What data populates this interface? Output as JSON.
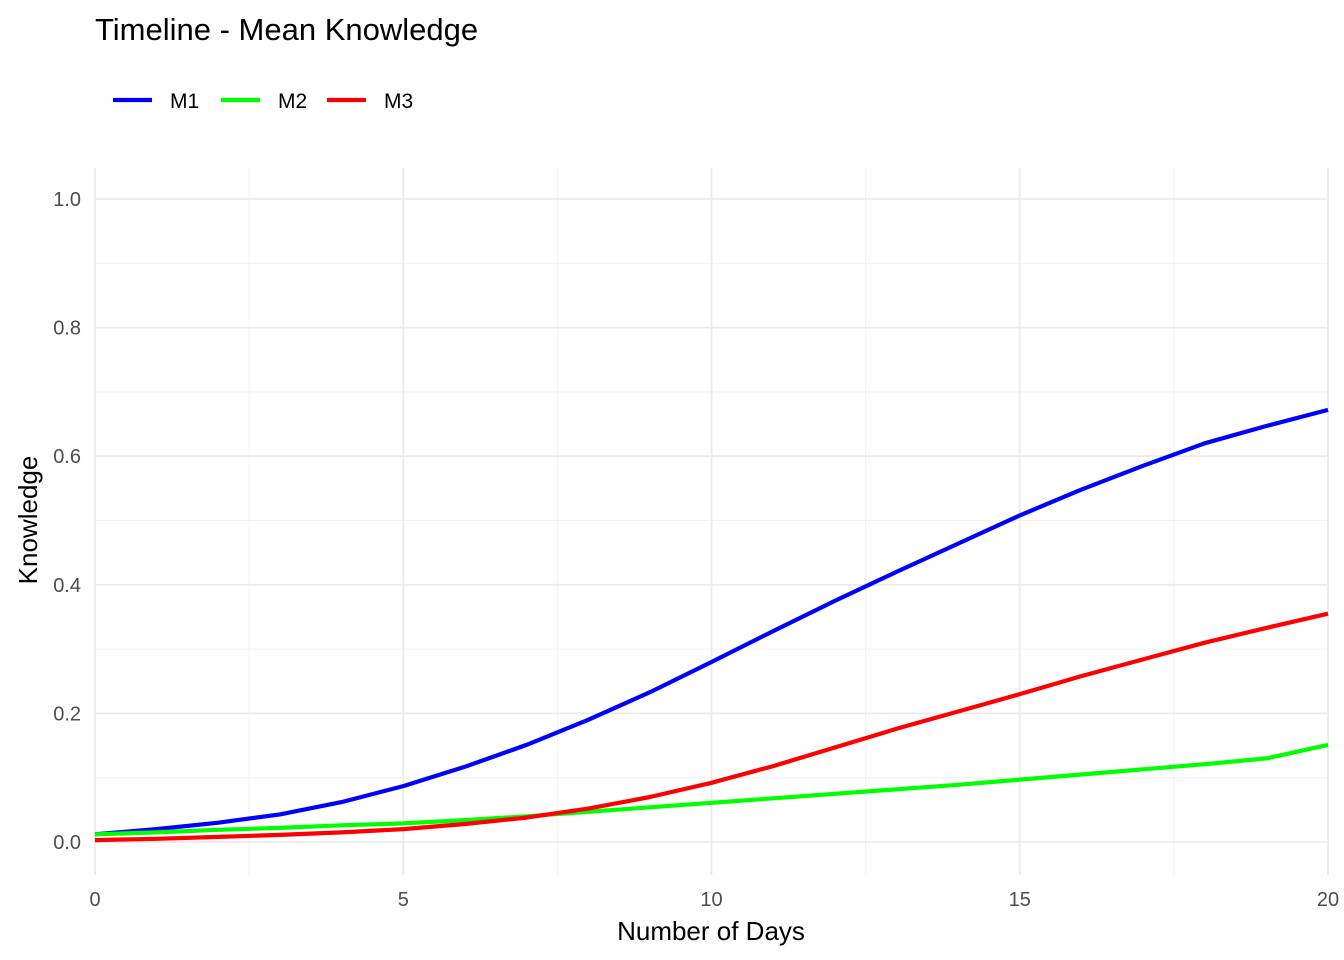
{
  "chart_data": {
    "type": "line",
    "title": "Timeline - Mean Knowledge",
    "xlabel": "Number of Days",
    "ylabel": "Knowledge",
    "xlim": [
      0,
      20
    ],
    "ylim": [
      0,
      1
    ],
    "x_ticks": [
      "0",
      "5",
      "10",
      "15",
      "20"
    ],
    "y_ticks": [
      "0.0",
      "0.2",
      "0.4",
      "0.6",
      "0.8",
      "1.0"
    ],
    "grid": true,
    "legend_position": "top-left",
    "x": [
      0,
      1,
      2,
      3,
      4,
      5,
      6,
      7,
      8,
      9,
      10,
      11,
      12,
      13,
      14,
      15,
      16,
      17,
      18,
      19,
      20
    ],
    "series": [
      {
        "name": "M1",
        "color": "#0000ff",
        "values": [
          0.012,
          0.02,
          0.03,
          0.043,
          0.062,
          0.087,
          0.117,
          0.151,
          0.19,
          0.233,
          0.28,
          0.328,
          0.375,
          0.42,
          0.464,
          0.508,
          0.548,
          0.585,
          0.62,
          0.647,
          0.672
        ]
      },
      {
        "name": "M2",
        "color": "#00ff00",
        "values": [
          0.012,
          0.015,
          0.019,
          0.022,
          0.026,
          0.029,
          0.034,
          0.04,
          0.047,
          0.054,
          0.061,
          0.068,
          0.075,
          0.082,
          0.089,
          0.097,
          0.105,
          0.113,
          0.121,
          0.13,
          0.151
        ]
      },
      {
        "name": "M3",
        "color": "#ff0000",
        "values": [
          0.003,
          0.005,
          0.008,
          0.011,
          0.015,
          0.02,
          0.028,
          0.038,
          0.052,
          0.07,
          0.092,
          0.118,
          0.147,
          0.176,
          0.203,
          0.23,
          0.258,
          0.284,
          0.31,
          0.333,
          0.355
        ]
      }
    ]
  }
}
